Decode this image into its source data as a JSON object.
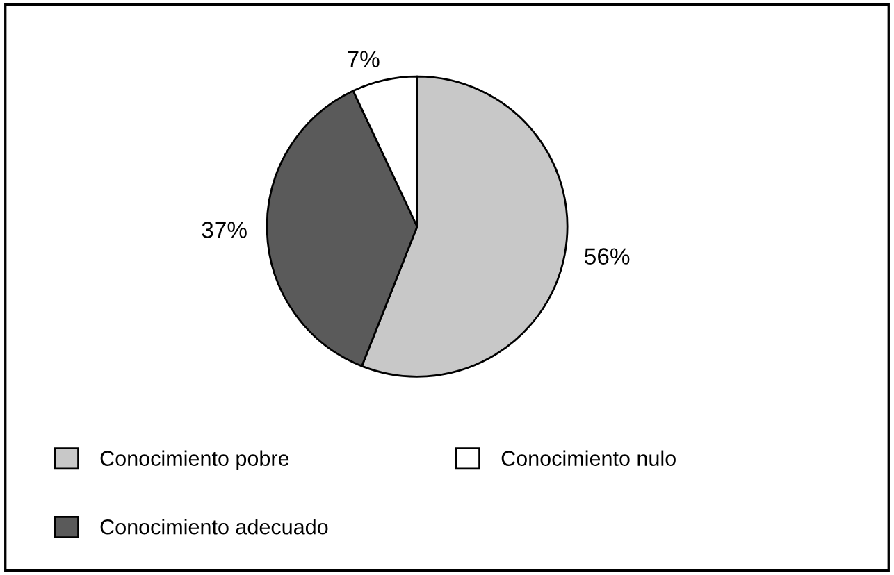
{
  "chart_data": {
    "type": "pie",
    "categories": [
      "Conocimiento pobre",
      "Conocimiento adecuado",
      "Conocimiento nulo"
    ],
    "values": [
      56,
      37,
      7
    ],
    "value_labels": [
      "56%",
      "37%",
      "7%"
    ],
    "colors": [
      "#c8c8c8",
      "#5a5a5a",
      "#ffffff"
    ],
    "legend": "bottom"
  }
}
